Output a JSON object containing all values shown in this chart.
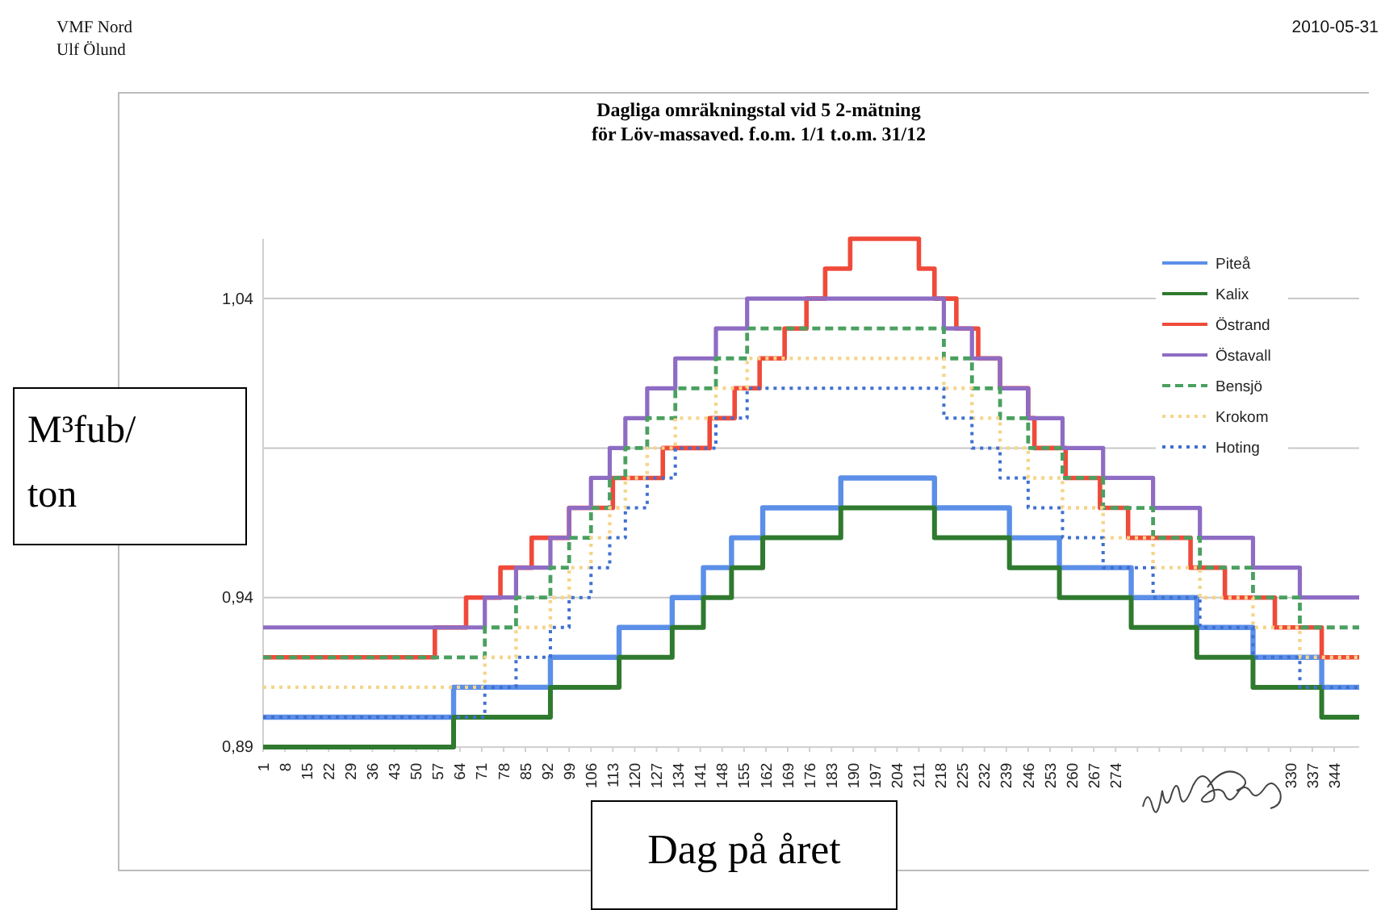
{
  "chart_data": {
    "type": "step",
    "title": "Dagliga omräkningstal vid 5 2-mätning",
    "subtitle": "för Löv-massaved. f.o.m. 1/1 t.o.m. 31/12",
    "xlabel": "Dag på året",
    "ylabel": "M³fub/ton",
    "annotations": [
      "VMF Nord",
      "Ulf Ölund",
      "2010-05-31"
    ],
    "xlim": [
      1,
      352
    ],
    "xticks": [
      1,
      8,
      15,
      22,
      29,
      36,
      43,
      50,
      57,
      64,
      71,
      78,
      85,
      92,
      99,
      106,
      113,
      120,
      127,
      134,
      141,
      148,
      155,
      162,
      169,
      176,
      183,
      190,
      197,
      204,
      211,
      218,
      225,
      232,
      239,
      246,
      253,
      260,
      267,
      274,
      {
        "value": 281,
        "label": null
      },
      {
        "value": 288,
        "label": null
      },
      {
        "value": 295,
        "label": null
      },
      {
        "value": 302,
        "label": null
      },
      {
        "value": 309,
        "label": null
      },
      {
        "value": 316,
        "label": null
      },
      {
        "value": 323,
        "label": null
      },
      330,
      337,
      344
    ],
    "ylim": [
      0.89,
      1.06
    ],
    "yticks": [
      {
        "value": 0.89,
        "label": "0,89"
      },
      {
        "value": 0.94,
        "label": "0,94"
      },
      {
        "value": 0.99,
        "label": null
      },
      {
        "value": 1.04,
        "label": "1,04"
      }
    ],
    "grid": "y",
    "legend": "top right",
    "series": [
      {
        "name": "Piteå",
        "color": "#5b8fe8",
        "line_style": "solid",
        "x": [
          1,
          62,
          93,
          115,
          132,
          142,
          151,
          161,
          186,
          216,
          240,
          256,
          279,
          300,
          318,
          340,
          352
        ],
        "values": [
          0.9,
          0.91,
          0.92,
          0.93,
          0.94,
          0.95,
          0.96,
          0.97,
          0.98,
          0.97,
          0.96,
          0.95,
          0.94,
          0.93,
          0.92,
          0.91,
          0.91
        ]
      },
      {
        "name": "Kalix",
        "color": "#2f7a2f",
        "line_style": "solid",
        "x": [
          1,
          62,
          93,
          115,
          132,
          142,
          151,
          161,
          186,
          216,
          240,
          256,
          279,
          300,
          318,
          340,
          352
        ],
        "values": [
          0.89,
          0.9,
          0.91,
          0.92,
          0.93,
          0.94,
          0.95,
          0.96,
          0.97,
          0.96,
          0.95,
          0.94,
          0.93,
          0.92,
          0.91,
          0.9,
          0.9
        ]
      },
      {
        "name": "Östrand",
        "color": "#f04a3a",
        "line_style": "solid",
        "x": [
          1,
          56,
          66,
          77,
          87,
          99,
          113,
          129,
          144,
          152,
          160,
          168,
          175,
          181,
          189,
          211,
          216,
          223,
          230,
          237,
          246,
          248,
          258,
          269,
          278,
          298,
          309,
          325,
          340,
          352
        ],
        "values": [
          0.92,
          0.93,
          0.94,
          0.95,
          0.96,
          0.97,
          0.98,
          0.99,
          1.0,
          1.01,
          1.02,
          1.03,
          1.04,
          1.05,
          1.06,
          1.05,
          1.04,
          1.03,
          1.02,
          1.01,
          1.0,
          0.99,
          0.98,
          0.97,
          0.96,
          0.95,
          0.94,
          0.93,
          0.92,
          0.92
        ]
      },
      {
        "name": "Östavall",
        "color": "#8e6cc4",
        "line_style": "solid",
        "x": [
          1,
          72,
          82,
          93,
          99,
          106,
          112,
          117,
          124,
          133,
          146,
          156,
          219,
          228,
          237,
          246,
          257,
          270,
          286,
          301,
          318,
          333,
          352
        ],
        "values": [
          0.93,
          0.94,
          0.95,
          0.96,
          0.97,
          0.98,
          0.99,
          1.0,
          1.01,
          1.02,
          1.03,
          1.04,
          1.03,
          1.02,
          1.01,
          1.0,
          0.99,
          0.98,
          0.97,
          0.96,
          0.95,
          0.94,
          0.94
        ]
      },
      {
        "name": "Bensjö",
        "color": "#4aa060",
        "line_style": "dashed",
        "x": [
          1,
          72,
          82,
          93,
          99,
          106,
          112,
          117,
          124,
          133,
          146,
          156,
          219,
          228,
          237,
          246,
          257,
          270,
          286,
          301,
          318,
          333,
          352
        ],
        "values": [
          0.92,
          0.93,
          0.94,
          0.95,
          0.96,
          0.97,
          0.98,
          0.99,
          1.0,
          1.01,
          1.02,
          1.03,
          1.02,
          1.01,
          1.0,
          0.99,
          0.98,
          0.97,
          0.96,
          0.95,
          0.94,
          0.93,
          0.93
        ]
      },
      {
        "name": "Krokom",
        "color": "#f5d58a",
        "line_style": "dotted",
        "x": [
          1,
          72,
          82,
          93,
          99,
          106,
          112,
          117,
          124,
          133,
          146,
          156,
          219,
          228,
          237,
          246,
          257,
          270,
          286,
          301,
          318,
          333,
          352
        ],
        "values": [
          0.91,
          0.92,
          0.93,
          0.94,
          0.95,
          0.96,
          0.97,
          0.98,
          0.99,
          1.0,
          1.01,
          1.02,
          1.01,
          1.0,
          0.99,
          0.98,
          0.97,
          0.96,
          0.95,
          0.94,
          0.93,
          0.92,
          0.92
        ]
      },
      {
        "name": "Hoting",
        "color": "#4070d0",
        "line_style": "dotted",
        "x": [
          1,
          72,
          82,
          93,
          99,
          106,
          112,
          117,
          124,
          133,
          146,
          156,
          219,
          228,
          237,
          246,
          257,
          270,
          286,
          301,
          318,
          333,
          352
        ],
        "values": [
          0.9,
          0.91,
          0.92,
          0.93,
          0.94,
          0.95,
          0.96,
          0.97,
          0.98,
          0.99,
          1.0,
          1.01,
          1.0,
          0.99,
          0.98,
          0.97,
          0.96,
          0.95,
          0.94,
          0.93,
          0.92,
          0.91,
          0.91
        ]
      }
    ]
  }
}
